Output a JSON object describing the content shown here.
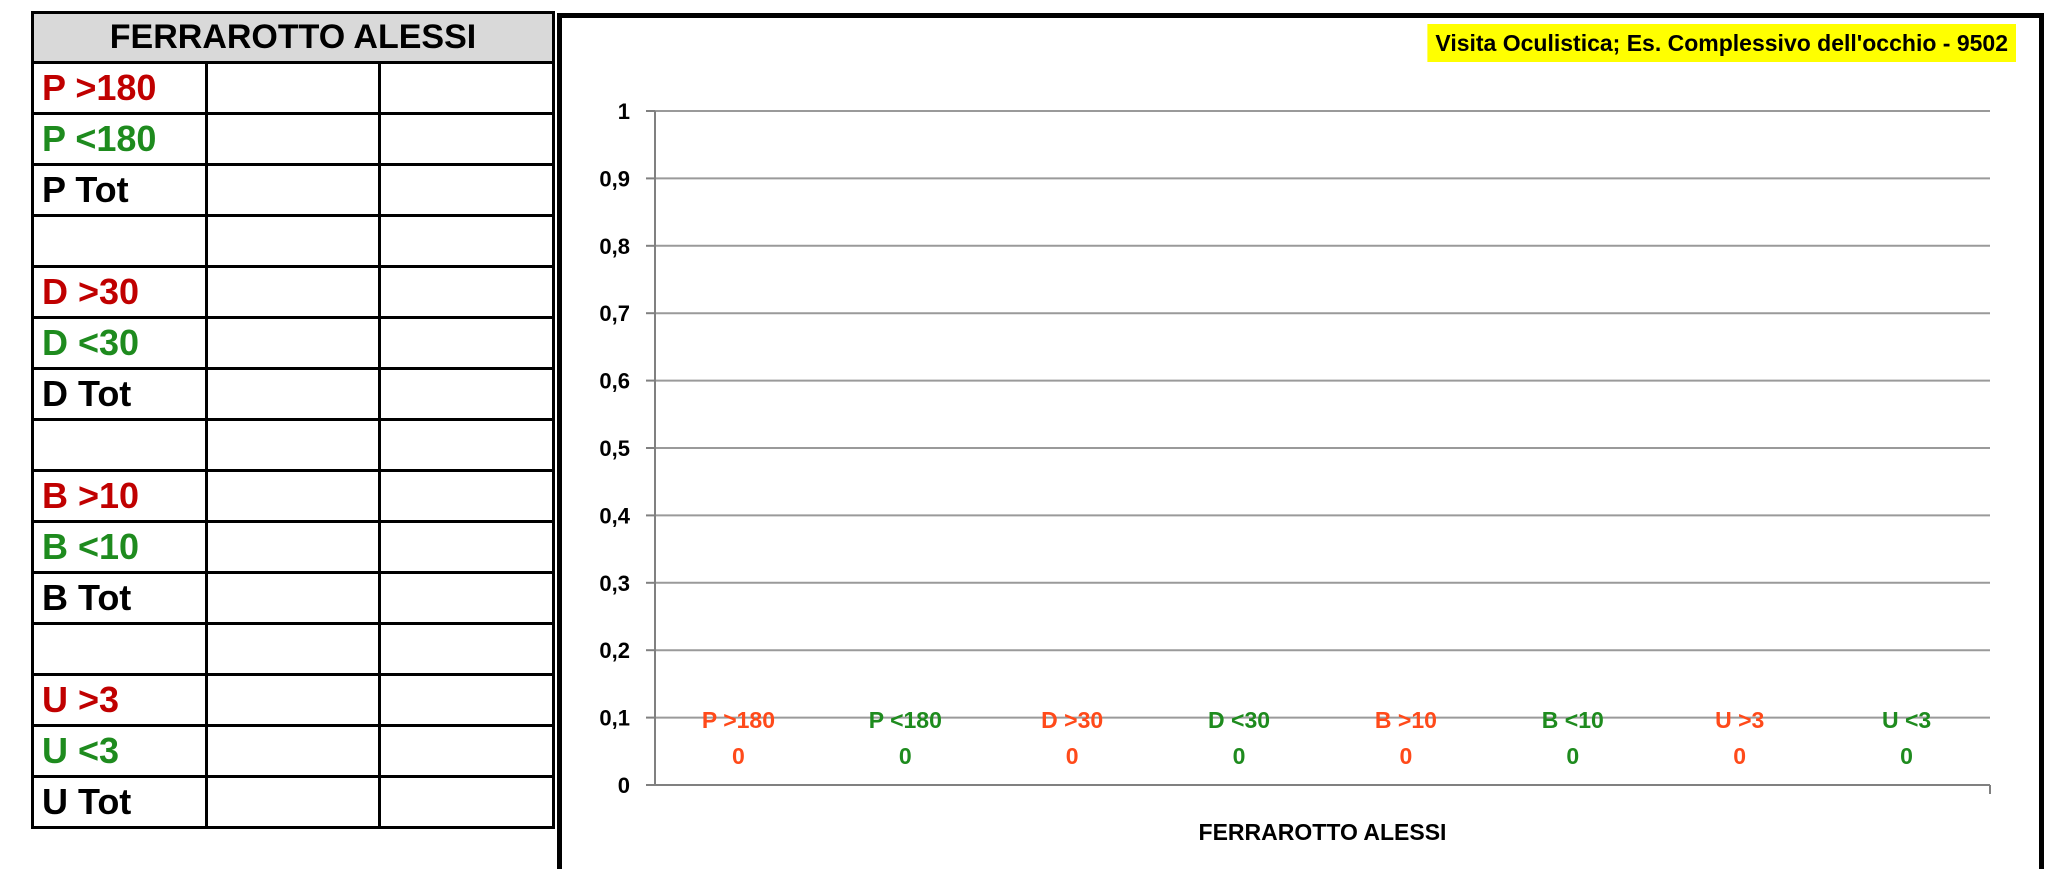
{
  "table": {
    "header": "FERRAROTTO ALESSI",
    "rows": [
      {
        "label": "P  >180",
        "color": "red"
      },
      {
        "label": "P  <180",
        "color": "green"
      },
      {
        "label": "P  Tot",
        "color": "black"
      },
      {
        "label": "",
        "color": "black"
      },
      {
        "label": "D  >30",
        "color": "red"
      },
      {
        "label": "D  <30",
        "color": "green"
      },
      {
        "label": "D  Tot",
        "color": "black"
      },
      {
        "label": "",
        "color": "black"
      },
      {
        "label": "B  >10",
        "color": "red"
      },
      {
        "label": "B  <10",
        "color": "green"
      },
      {
        "label": "B  Tot",
        "color": "black"
      },
      {
        "label": "",
        "color": "black"
      },
      {
        "label": "U  >3",
        "color": "red"
      },
      {
        "label": "U  <3",
        "color": "green"
      },
      {
        "label": "U  Tot",
        "color": "black"
      }
    ]
  },
  "colors": {
    "red": "#c00000",
    "green": "#1e8b1e",
    "orange": "#ff4a1a",
    "title_bg": "#ffff00"
  },
  "chart_data": {
    "type": "bar",
    "title": "Visita Oculistica; Es. Complessivo dell'occhio - 9502",
    "xlabel": "FERRAROTTO ALESSI",
    "ylabel": "",
    "ylim": [
      0,
      1
    ],
    "yticks": [
      "0",
      "0,1",
      "0,2",
      "0,3",
      "0,4",
      "0,5",
      "0,6",
      "0,7",
      "0,8",
      "0,9",
      "1"
    ],
    "grid": true,
    "categories": [
      "P >180",
      "P <180",
      "D >30",
      "D <30",
      "B >10",
      "B <10",
      "U >3",
      "U <3"
    ],
    "values": [
      0,
      0,
      0,
      0,
      0,
      0,
      0,
      0
    ],
    "value_labels": [
      "0",
      "0",
      "0",
      "0",
      "0",
      "0",
      "0",
      "0"
    ],
    "category_colors": [
      "orange",
      "green",
      "orange",
      "green",
      "orange",
      "green",
      "orange",
      "green"
    ]
  }
}
